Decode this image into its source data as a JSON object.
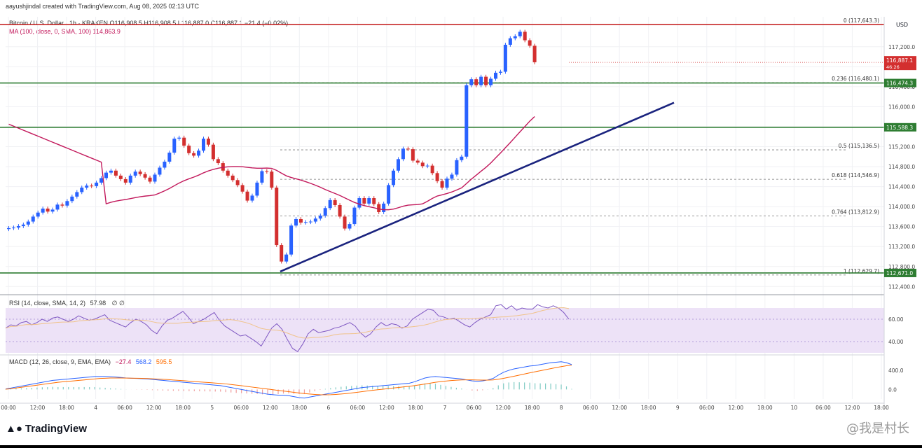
{
  "header": {
    "creator": "aayushjindal created with TradingView.com, Aug 08, 2025 02:13 UTC",
    "symbol_line": "Bitcoin / U.S. Dollar · 1h · KRAKEN  O116,908.5  H116,908.5  L116,887.0  C116,887.1  −21.4 (−0.02%)",
    "ma_line": "MA (100, close, 0, SMA, 100)  114,863.9"
  },
  "footer": {
    "logo": "TradingView",
    "watermark": "@我是村长"
  },
  "colors": {
    "bull": "#2962ff",
    "bear": "#d32f2f",
    "ma": "#c2185b",
    "trend": "#1a237e",
    "green_level": "#2e7d32",
    "red_level": "#c62828"
  },
  "chart_data": [
    {
      "type": "candlestick",
      "currency": "USD",
      "y_ticks": [
        112400,
        112800,
        113200,
        113600,
        114000,
        114400,
        114800,
        115200,
        115600,
        116000,
        116400,
        116800,
        117200
      ],
      "ylim": [
        112250,
        117800
      ],
      "x_ticks": [
        "00:00",
        "12:00",
        "18:00",
        "4",
        "06:00",
        "12:00",
        "18:00",
        "5",
        "06:00",
        "12:00",
        "18:00",
        "6",
        "06:00",
        "12:00",
        "18:00",
        "7",
        "06:00",
        "12:00",
        "18:00",
        "8",
        "06:00",
        "12:00",
        "18:00",
        "9",
        "06:00",
        "12:00",
        "18:00",
        "10",
        "06:00",
        "12:00",
        "18:00"
      ],
      "bar_interval": "1h",
      "candles_approx_close": [
        113570,
        113580,
        113610,
        113640,
        113700,
        113800,
        113880,
        113960,
        113900,
        113940,
        114040,
        114020,
        114110,
        114200,
        114290,
        114380,
        114420,
        114410,
        114480,
        114570,
        114680,
        114720,
        114620,
        114550,
        114480,
        114620,
        114700,
        114650,
        114580,
        114500,
        114640,
        114780,
        114900,
        115080,
        115360,
        115380,
        115220,
        115070,
        115020,
        115120,
        115360,
        115240,
        114950,
        114870,
        114720,
        114620,
        114530,
        114430,
        114300,
        114120,
        114220,
        114480,
        114710,
        114700,
        114380,
        113230,
        112900,
        113040,
        113620,
        113750,
        113680,
        113690,
        113700,
        113760,
        113820,
        113970,
        114130,
        114030,
        113800,
        113560,
        113650,
        113980,
        114170,
        114060,
        114170,
        114050,
        113890,
        114060,
        114430,
        114720,
        114950,
        115160,
        115150,
        114920,
        114880,
        114810,
        114820,
        114670,
        114510,
        114380,
        114560,
        114640,
        114930,
        115000,
        116430,
        116550,
        116430,
        116600,
        116430,
        116560,
        116680,
        116700,
        117240,
        117370,
        117410,
        117500,
        117330,
        117220,
        116890
      ],
      "moving_average": {
        "label": "MA (100, close, 0, SMA, 100)",
        "value": 114863.9
      },
      "trend_line": {
        "from": 112700,
        "to": 116080,
        "label": ""
      },
      "fibonacci": [
        {
          "label": "0 (117,643.3)",
          "value": 117643.3
        },
        {
          "label": "0.236 (116,480.1)",
          "value": 116480.1
        },
        {
          "label": "0.5 (115,136.5)",
          "value": 115136.5
        },
        {
          "label": "0.618 (114,546.9)",
          "value": 114546.9
        },
        {
          "label": "0.764 (113,812.9)",
          "value": 113812.9
        },
        {
          "label": "1 (112,629.7)",
          "value": 112629.7
        }
      ],
      "levels": [
        {
          "value": 117643.3,
          "color": "#c62828",
          "label": ""
        },
        {
          "value": 116474.3,
          "color": "#2e7d32",
          "label": "116,474.3"
        },
        {
          "value": 115588.3,
          "color": "#2e7d32",
          "label": "115,588.3"
        },
        {
          "value": 112671.0,
          "color": "#2e7d32",
          "label": "112,671.0"
        }
      ],
      "last_price": {
        "label": "116,887.1",
        "countdown": "46:26",
        "value": 116887.1
      },
      "axis_label": "USD"
    },
    {
      "type": "line",
      "name": "RSI",
      "label": "RSI (14, close, SMA, 14, 2)",
      "value_label": "57.98",
      "extra": "∅  ∅",
      "y_ticks": [
        40,
        60
      ],
      "ylim": [
        30,
        80
      ],
      "band": [
        30,
        70
      ],
      "values": [
        52,
        55,
        54,
        57,
        58,
        55,
        57,
        60,
        58,
        61,
        62,
        60,
        58,
        60,
        63,
        61,
        59,
        60,
        62,
        64,
        59,
        57,
        55,
        53,
        57,
        60,
        58,
        55,
        50,
        47,
        54,
        59,
        61,
        64,
        67,
        62,
        56,
        58,
        60,
        63,
        66,
        59,
        54,
        51,
        48,
        45,
        46,
        43,
        40,
        36,
        44,
        52,
        56,
        51,
        42,
        34,
        31,
        38,
        47,
        51,
        48,
        49,
        50,
        52,
        53,
        55,
        57,
        54,
        48,
        44,
        47,
        53,
        57,
        54,
        56,
        55,
        52,
        54,
        60,
        63,
        66,
        69,
        68,
        63,
        62,
        60,
        61,
        58,
        55,
        53,
        57,
        60,
        62,
        64,
        72,
        73,
        69,
        72,
        68,
        70,
        69,
        69,
        73,
        71,
        70,
        72,
        70,
        66,
        60
      ]
    },
    {
      "type": "line",
      "name": "MACD",
      "label": "MACD (12, 26, close, 9, EMA, EMA)",
      "values_label": [
        "−27.4",
        "568.2",
        "595.5"
      ],
      "y_ticks": [
        0.0,
        400.0
      ],
      "ylim": [
        -200,
        650
      ],
      "macd": [
        10,
        30,
        50,
        70,
        90,
        110,
        130,
        150,
        170,
        190,
        200,
        210,
        220,
        230,
        240,
        250,
        260,
        270,
        270,
        270,
        265,
        260,
        250,
        240,
        235,
        230,
        225,
        220,
        210,
        200,
        190,
        180,
        170,
        160,
        150,
        140,
        130,
        120,
        110,
        100,
        90,
        80,
        60,
        40,
        20,
        0,
        -20,
        -40,
        -60,
        -80,
        -100,
        -110,
        -120,
        -120,
        -130,
        -150,
        -170,
        -180,
        -160,
        -140,
        -120,
        -100,
        -80,
        -60,
        -40,
        -20,
        0,
        20,
        40,
        50,
        60,
        70,
        80,
        90,
        100,
        110,
        120,
        130,
        160,
        200,
        240,
        260,
        270,
        260,
        250,
        240,
        230,
        220,
        200,
        180,
        170,
        180,
        200,
        230,
        300,
        360,
        400,
        430,
        450,
        470,
        490,
        500,
        520,
        540,
        560,
        570,
        580,
        560,
        520
      ],
      "signal": [
        5,
        15,
        30,
        45,
        60,
        75,
        90,
        105,
        120,
        135,
        150,
        160,
        170,
        180,
        190,
        200,
        210,
        220,
        230,
        235,
        240,
        240,
        240,
        238,
        236,
        234,
        232,
        228,
        224,
        218,
        212,
        206,
        198,
        190,
        182,
        174,
        166,
        158,
        150,
        142,
        134,
        126,
        116,
        104,
        92,
        78,
        64,
        50,
        36,
        22,
        8,
        -6,
        -20,
        -34,
        -46,
        -60,
        -74,
        -86,
        -96,
        -104,
        -110,
        -112,
        -110,
        -104,
        -96,
        -86,
        -74,
        -60,
        -46,
        -32,
        -18,
        -6,
        6,
        18,
        30,
        42,
        54,
        66,
        80,
        96,
        114,
        132,
        150,
        164,
        176,
        186,
        194,
        200,
        202,
        202,
        198,
        196,
        196,
        200,
        214,
        232,
        254,
        276,
        300,
        324,
        348,
        370,
        392,
        414,
        436,
        458,
        478,
        496,
        508
      ]
    }
  ]
}
